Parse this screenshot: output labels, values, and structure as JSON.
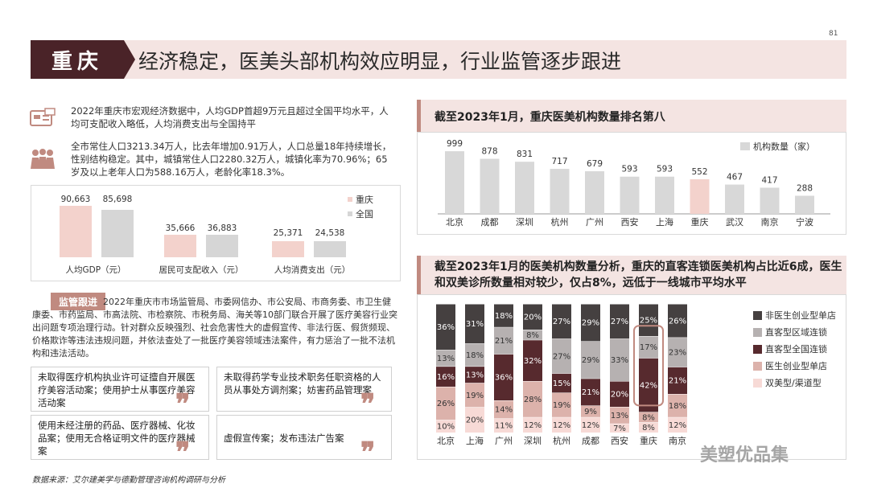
{
  "page_number": "81",
  "header": {
    "city": "重庆",
    "title": "经济稳定，医美头部机构效应明显，行业监管逐步跟进"
  },
  "intro": {
    "para1": "2022年重庆市宏观经济数据中，人均GDP首超9万元且超过全国平均水平，人均可支配收入略低，人均消费支出与全国持平",
    "para2": "全市常住人口3213.34万人，比去年增加0.91万人，人口总量18年持续增长，性别结构稳定。其中，城镇常住人口2280.32万人，城镇化率为70.96%；65岁及以上老年人口为588.16万人，老龄化率18.3%。"
  },
  "econ_chart": {
    "legend": [
      "重庆",
      "全国"
    ],
    "colors": {
      "chongqing": "#f3d2cc",
      "national": "#d6d6d6"
    },
    "groups": [
      {
        "label": "人均GDP（元）",
        "values": [
          "90,663",
          "85,698"
        ]
      },
      {
        "label": "居民可支配收入（元）",
        "values": [
          "35,666",
          "36,883"
        ]
      },
      {
        "label": "人均消费支出（元）",
        "values": [
          "25,371",
          "24,538"
        ]
      }
    ]
  },
  "supervision": {
    "tag": "监管跟进",
    "text": "2022年重庆市市场监管局、市委网信办、市公安局、市商务委、市卫生健康委、市药监局、市高法院、市检察院、市税务局、海关等10部门联合开展了医疗美容行业突出问题专项治理行动。针对群众反映强烈、社会危害性大的虚假宣传、非法行医、假货频现、价格欺诈等违法违规问题，并依法查处了一批医疗美容领域违法案件，有力惩治了一批不法机构和违法活动。",
    "cases": [
      "未取得医疗机构执业许可证擅自开展医疗美容活动案；使用护士从事医疗美容活动案",
      "未取得药学专业技术职务任职资格的人员从事处方调剂案；妨害药品管理案",
      "使用未经注册的药品、医疗器械、化妆品案；使用无合格证明文件的医疗器械案",
      "虚假宣传案；发布违法广告案"
    ]
  },
  "rank_chart": {
    "title": "截至2023年1月，重庆医美机构数量排名第八",
    "legend": "机构数量（家）",
    "highlight": "重庆",
    "colors": {
      "bar": "#d8d8d8",
      "highlight": "#f3d2cc"
    },
    "chart_data": {
      "type": "bar",
      "categories": [
        "北京",
        "成都",
        "深圳",
        "杭州",
        "广州",
        "西安",
        "上海",
        "重庆",
        "武汉",
        "南京",
        "宁波"
      ],
      "values": [
        999,
        878,
        831,
        717,
        679,
        593,
        593,
        552,
        467,
        417,
        288
      ],
      "ylim": [
        0,
        1000
      ]
    }
  },
  "stack_chart": {
    "title": "截至2023年1月的医美机构数量分析，重庆的直客连锁医美机构占比近6成，医生和双美诊所数量相对较少，仅占8%，远低于一线城市平均水平",
    "highlight": "重庆",
    "chart_data": {
      "type": "bar",
      "stacked": true,
      "categories": [
        "北京",
        "上海",
        "广州",
        "深圳",
        "杭州",
        "成都",
        "西安",
        "重庆",
        "南京"
      ],
      "series": [
        {
          "name": "双美型/渠道型",
          "color": "#f7dad6",
          "values": [
            10,
            20,
            11,
            12,
            12,
            12,
            7,
            8,
            12
          ]
        },
        {
          "name": "医生创业型单店",
          "color": "#dcb2ab",
          "values": [
            26,
            19,
            14,
            28,
            19,
            9,
            13,
            8,
            18
          ]
        },
        {
          "name": "直客型全国连锁",
          "color": "#572a2e",
          "values": [
            16,
            13,
            36,
            32,
            15,
            21,
            20,
            42,
            21
          ]
        },
        {
          "name": "直客型区域连锁",
          "color": "#b6b1b1",
          "values": [
            13,
            18,
            21,
            8,
            27,
            29,
            33,
            17,
            23
          ]
        },
        {
          "name": "非医生创业型单店",
          "color": "#454040",
          "values": [
            36,
            31,
            18,
            20,
            27,
            29,
            27,
            25,
            26
          ]
        }
      ],
      "labels": [
        [
          "10%",
          "20%",
          "11%",
          "12%",
          "12%",
          "12%",
          "7%",
          "8%",
          "12%"
        ],
        [
          "26%",
          "19%",
          "14%",
          "28%",
          "19%",
          "9%",
          "13%",
          "8%",
          "18%"
        ],
        [
          "16%",
          "13%",
          "36%",
          "32%",
          "15%",
          "21%",
          "20%",
          "42%",
          "21%"
        ],
        [
          "13%",
          "18%",
          "21%",
          "8%",
          "27%",
          "29%",
          "33%",
          "17%",
          "23%"
        ],
        [
          "36%",
          "31%",
          "18%",
          "20%",
          "27%",
          "29%",
          "27%",
          "25%",
          "26%"
        ]
      ],
      "legend_order": [
        "非医生创业型单店",
        "直客型区域连锁",
        "直客型全国连锁",
        "医生创业型单店",
        "双美型/渠道型"
      ]
    }
  },
  "watermark": "美塑优品集",
  "source": "数据来源：艾尔建美学与德勤管理咨询机构调研与分析"
}
